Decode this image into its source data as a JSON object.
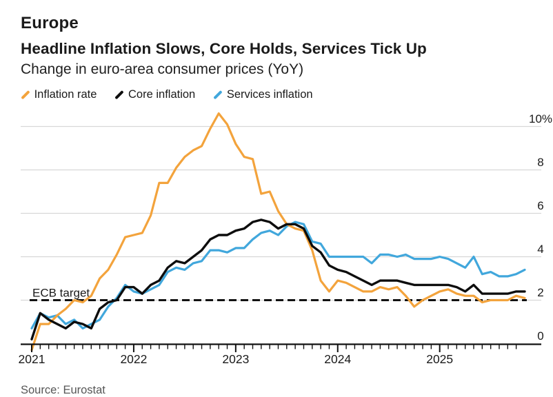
{
  "header": {
    "kicker": "Europe",
    "title": "Headline Inflation Slows, Core Holds, Services Tick Up",
    "subtitle": "Change in euro-area consumer prices (YoY)"
  },
  "legend": [
    {
      "label": "Inflation rate",
      "color": "#F3A33C"
    },
    {
      "label": "Core inflation",
      "color": "#0d0d0d"
    },
    {
      "label": "Services inflation",
      "color": "#41A7DC"
    }
  ],
  "annotation": {
    "ecb_target_label": "ECB target",
    "ecb_target_value": 2
  },
  "source": "Source: Eurostat",
  "chart_data": {
    "type": "line",
    "x_start": "2020-12",
    "x_end": "2025-10",
    "x_frequency": "monthly",
    "x_year_labels": [
      "2021",
      "2022",
      "2023",
      "2024",
      "2025"
    ],
    "x_year_tick_indices": [
      0,
      12,
      24,
      36,
      48
    ],
    "y_axis_side": "right",
    "y_tick_labels": [
      {
        "value": 10,
        "label": "10%"
      },
      {
        "value": 8,
        "label": "8"
      },
      {
        "value": 6,
        "label": "6"
      },
      {
        "value": 4,
        "label": "4"
      },
      {
        "value": 2,
        "label": "2"
      },
      {
        "value": 0,
        "label": "0"
      }
    ],
    "y_gridline_values": [
      10,
      8,
      6,
      4,
      2
    ],
    "ylim": [
      -0.5,
      10.8
    ],
    "grid": true,
    "legend_position": "top",
    "reference_line": {
      "value": 2,
      "style": "dashed",
      "color": "#111111",
      "label": "ECB target"
    },
    "series": [
      {
        "name": "Services inflation",
        "color": "#41A7DC",
        "stroke_width": 3.2,
        "values": [
          0.7,
          1.4,
          1.2,
          1.3,
          0.9,
          1.1,
          0.7,
          0.9,
          1.1,
          1.7,
          2.1,
          2.7,
          2.4,
          2.3,
          2.5,
          2.7,
          3.3,
          3.5,
          3.4,
          3.7,
          3.8,
          4.3,
          4.3,
          4.2,
          4.4,
          4.4,
          4.8,
          5.1,
          5.2,
          5.0,
          5.4,
          5.6,
          5.5,
          4.7,
          4.6,
          4.0,
          4.0,
          4.0,
          4.0,
          4.0,
          3.7,
          4.1,
          4.1,
          4.0,
          4.1,
          3.9,
          3.9,
          3.9,
          4.0,
          3.9,
          3.7,
          3.5,
          4.0,
          3.2,
          3.3,
          3.1,
          3.1,
          3.2,
          3.4
        ]
      },
      {
        "name": "Inflation rate",
        "color": "#F3A33C",
        "stroke_width": 3.2,
        "values": [
          -0.3,
          0.9,
          0.9,
          1.3,
          1.6,
          2.0,
          1.9,
          2.2,
          3.0,
          3.4,
          4.1,
          4.9,
          5.0,
          5.1,
          5.9,
          7.4,
          7.4,
          8.1,
          8.6,
          8.9,
          9.1,
          9.9,
          10.6,
          10.1,
          9.2,
          8.6,
          8.5,
          6.9,
          7.0,
          6.1,
          5.5,
          5.3,
          5.2,
          4.3,
          2.9,
          2.4,
          2.9,
          2.8,
          2.6,
          2.4,
          2.4,
          2.6,
          2.5,
          2.6,
          2.2,
          1.7,
          2.0,
          2.2,
          2.4,
          2.5,
          2.3,
          2.2,
          2.2,
          1.9,
          2.0,
          2.0,
          2.0,
          2.2,
          2.1
        ]
      },
      {
        "name": "Core inflation",
        "color": "#0d0d0d",
        "stroke_width": 3.4,
        "values": [
          0.2,
          1.4,
          1.1,
          0.9,
          0.7,
          1.0,
          0.9,
          0.7,
          1.6,
          1.9,
          2.0,
          2.6,
          2.6,
          2.3,
          2.7,
          2.9,
          3.5,
          3.8,
          3.7,
          4.0,
          4.3,
          4.8,
          5.0,
          5.0,
          5.2,
          5.3,
          5.6,
          5.7,
          5.6,
          5.3,
          5.5,
          5.5,
          5.3,
          4.5,
          4.2,
          3.6,
          3.4,
          3.3,
          3.1,
          2.9,
          2.7,
          2.9,
          2.9,
          2.9,
          2.8,
          2.7,
          2.7,
          2.7,
          2.7,
          2.7,
          2.6,
          2.4,
          2.7,
          2.3,
          2.3,
          2.3,
          2.3,
          2.4,
          2.4
        ]
      }
    ]
  }
}
